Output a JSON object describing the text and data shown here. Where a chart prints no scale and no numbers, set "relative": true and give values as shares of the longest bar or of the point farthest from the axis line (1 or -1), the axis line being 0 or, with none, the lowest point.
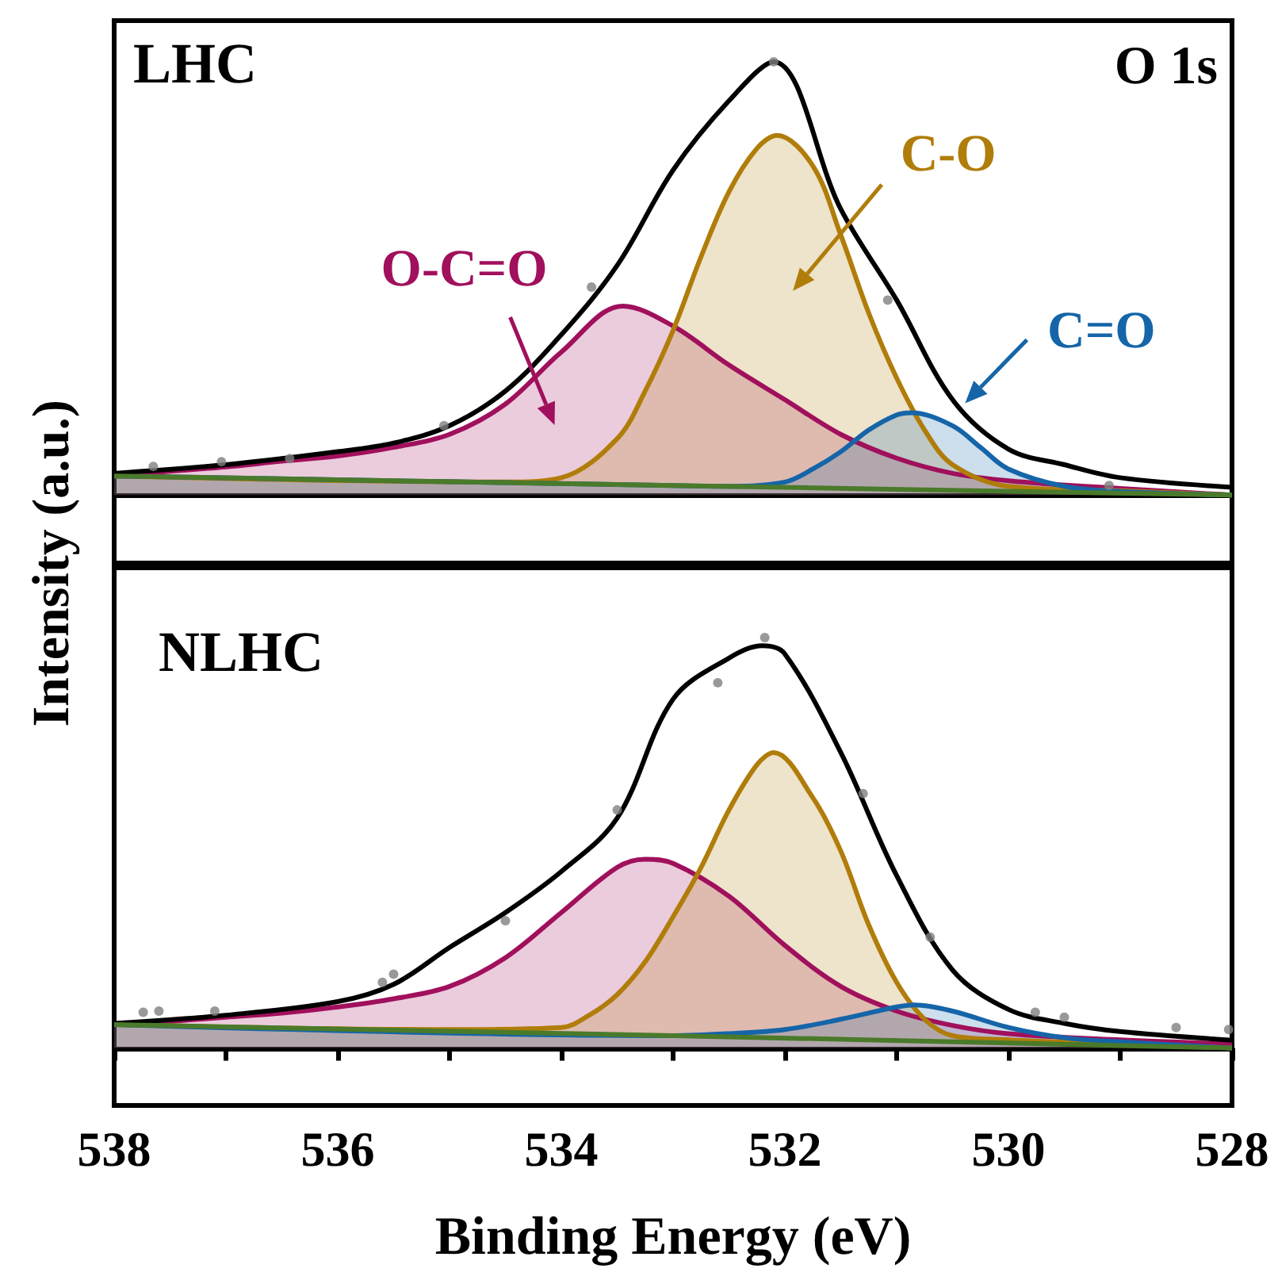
{
  "chart_data": [
    {
      "type": "line",
      "title": "LHC",
      "ylabel": "Intensity (a.u.)",
      "annotations": [
        "O 1s"
      ],
      "relative": true,
      "xlim": [
        538,
        528
      ],
      "marker": "none",
      "series": [
        {
          "type": "scatter",
          "marker": "circle",
          "color": "#808080",
          "x": [
            537.65,
            537.04,
            536.43,
            535.05,
            533.73,
            532.1,
            531.08,
            529.1
          ],
          "values": [
            0.066,
            0.077,
            0.084,
            0.16,
            0.48,
            1.0,
            0.45,
            0.022
          ]
        },
        {
          "color": "#000000",
          "x": [
            538,
            537,
            536,
            535.5,
            535,
            534.5,
            534,
            533.5,
            533,
            532.5,
            532.1,
            531.5,
            531,
            530.5,
            530,
            529.5,
            529,
            528
          ],
          "values": [
            0.05,
            0.07,
            0.1,
            0.12,
            0.16,
            0.24,
            0.37,
            0.53,
            0.75,
            0.91,
            1.0,
            0.66,
            0.45,
            0.22,
            0.106,
            0.07,
            0.04,
            0.018
          ]
        },
        {
          "color": "#4a7a2a",
          "x": [
            538,
            533,
            528
          ],
          "values": [
            0.044,
            0.022,
            0
          ]
        },
        {
          "name": "O-C=O",
          "type": "area",
          "color": "#a0105c",
          "x": [
            538,
            537.5,
            537,
            536.5,
            536,
            535.5,
            535,
            534.5,
            534,
            533.45,
            533,
            532.5,
            532,
            531.5,
            531,
            530.5,
            530,
            529,
            528
          ],
          "values": [
            0.044,
            0.055,
            0.065,
            0.078,
            0.09,
            0.11,
            0.14,
            0.21,
            0.33,
            0.436,
            0.39,
            0.3,
            0.22,
            0.14,
            0.085,
            0.05,
            0.033,
            0.015,
            0
          ]
        },
        {
          "name": "C-O",
          "type": "area",
          "color": "#b07d0a",
          "x": [
            538,
            534.5,
            534,
            533.5,
            533.25,
            533,
            532.75,
            532.5,
            532.25,
            532.07,
            531.75,
            531.5,
            531.25,
            531,
            530.75,
            530.5,
            530,
            529,
            528
          ],
          "values": [
            0.044,
            0.03,
            0.04,
            0.13,
            0.24,
            0.38,
            0.55,
            0.7,
            0.8,
            0.83,
            0.76,
            0.6,
            0.42,
            0.27,
            0.15,
            0.07,
            0.02,
            0.01,
            0
          ]
        },
        {
          "name": "C=O",
          "type": "area",
          "color": "#1565a8",
          "x": [
            538,
            533,
            532.5,
            532,
            531.75,
            531.5,
            531.25,
            531,
            530.87,
            530.5,
            530.25,
            530,
            529.5,
            529,
            528
          ],
          "values": [
            0.044,
            0.022,
            0.02,
            0.03,
            0.06,
            0.1,
            0.15,
            0.185,
            0.19,
            0.16,
            0.11,
            0.06,
            0.02,
            0.008,
            0
          ]
        }
      ]
    },
    {
      "type": "line",
      "title": "NLHC",
      "xlabel": "Binding Energy (eV)",
      "relative": true,
      "xlim": [
        538,
        528
      ],
      "xticks": [
        538,
        {
          "value": 537,
          "label": null
        },
        536,
        {
          "value": 535,
          "label": null
        },
        534,
        {
          "value": 533,
          "label": null
        },
        532,
        {
          "value": 531,
          "label": null
        },
        530,
        {
          "value": 529,
          "label": null
        },
        528
      ],
      "marker": "none",
      "series": [
        {
          "type": "scatter",
          "marker": "circle",
          "color": "#808080",
          "x": [
            537.74,
            537.6,
            537.1,
            535.6,
            535.5,
            534.5,
            533.5,
            532.6,
            532.18,
            531.3,
            530.7,
            529.76,
            529.5,
            528.5,
            528.03
          ],
          "values": [
            0.087,
            0.09,
            0.09,
            0.16,
            0.18,
            0.31,
            0.58,
            0.89,
            1.0,
            0.62,
            0.27,
            0.087,
            0.075,
            0.05,
            0.045
          ]
        },
        {
          "color": "#000000",
          "x": [
            538,
            537,
            536,
            535.5,
            535,
            534.5,
            534,
            533.5,
            533,
            532.5,
            532.2,
            532,
            531.5,
            531,
            530.5,
            530,
            529.5,
            529,
            528
          ],
          "values": [
            0.06,
            0.08,
            0.113,
            0.155,
            0.245,
            0.33,
            0.43,
            0.56,
            0.85,
            0.95,
            0.98,
            0.96,
            0.72,
            0.42,
            0.19,
            0.094,
            0.06,
            0.04,
            0.019
          ]
        },
        {
          "color": "#4a7a2a",
          "x": [
            538,
            533,
            528
          ],
          "values": [
            0.057,
            0.03,
            0
          ]
        },
        {
          "type": "area",
          "color": "#a0105c",
          "x": [
            538,
            537.5,
            537,
            536.5,
            536,
            535.5,
            535,
            534.5,
            534,
            533.5,
            533.25,
            533,
            532.5,
            532,
            531.5,
            531,
            530.5,
            530,
            529,
            528
          ],
          "values": [
            0.057,
            0.065,
            0.075,
            0.085,
            0.1,
            0.12,
            0.15,
            0.22,
            0.33,
            0.44,
            0.46,
            0.45,
            0.37,
            0.25,
            0.15,
            0.09,
            0.055,
            0.035,
            0.02,
            0.01
          ]
        },
        {
          "type": "area",
          "color": "#b07d0a",
          "x": [
            538,
            535,
            534,
            533.75,
            533.5,
            533.25,
            533,
            532.75,
            532.5,
            532.25,
            532.1,
            531.75,
            531.5,
            531.25,
            531,
            530.75,
            530.5,
            530,
            529,
            528
          ],
          "values": [
            0.057,
            0.045,
            0.05,
            0.08,
            0.13,
            0.21,
            0.32,
            0.44,
            0.58,
            0.69,
            0.72,
            0.61,
            0.48,
            0.3,
            0.16,
            0.07,
            0.03,
            0.02,
            0.01,
            0
          ]
        },
        {
          "type": "area",
          "color": "#1565a8",
          "x": [
            538,
            533,
            532.5,
            532,
            531.5,
            531,
            530.84,
            530.5,
            530,
            529.5,
            529,
            528
          ],
          "values": [
            0.057,
            0.03,
            0.035,
            0.045,
            0.07,
            0.1,
            0.105,
            0.09,
            0.05,
            0.025,
            0.015,
            0
          ]
        }
      ]
    }
  ]
}
